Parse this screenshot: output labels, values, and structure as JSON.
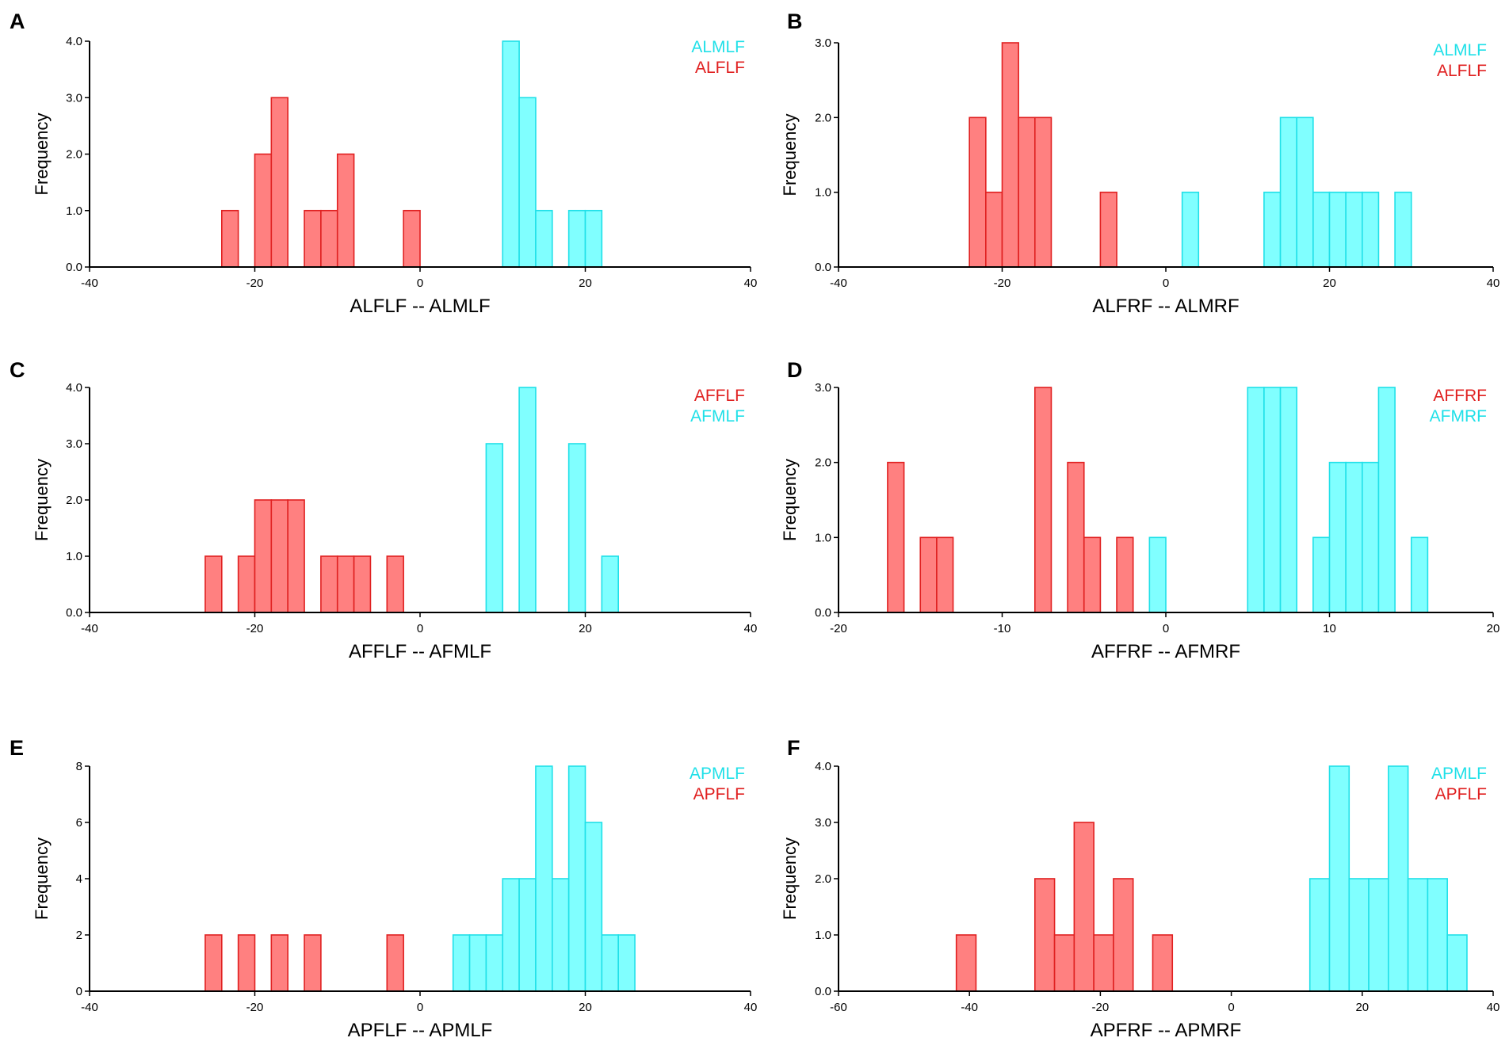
{
  "colors": {
    "red_fill": "#ff8080",
    "red_stroke": "#e02020",
    "red_text": "#e02020",
    "cyan_fill": "#80ffff",
    "cyan_stroke": "#20e0e8",
    "cyan_text": "#20e0e8"
  },
  "chart_data": [
    {
      "panel": "A",
      "type": "bar",
      "title": "",
      "xlabel": "ALFLF -- ALMLF",
      "ylabel": "Frequency",
      "xlim": [
        -40,
        40
      ],
      "ylim": [
        0,
        4
      ],
      "xticks": [
        -40,
        -20,
        0,
        20,
        40
      ],
      "yticks": [
        0,
        1,
        2,
        3,
        4
      ],
      "yticklabels": [
        "0.0",
        "1.0",
        "2.0",
        "3.0",
        "4.0"
      ],
      "legend": [
        {
          "label": "ALMLF",
          "color": "cyan"
        },
        {
          "label": "ALFLF",
          "color": "red"
        }
      ],
      "series": [
        {
          "name": "ALFLF",
          "color": "red",
          "bin_width": 2,
          "bins": [
            [
              -24,
              1
            ],
            [
              -20,
              2
            ],
            [
              -18,
              3
            ],
            [
              -14,
              1
            ],
            [
              -12,
              1
            ],
            [
              -10,
              2
            ],
            [
              -2,
              1
            ]
          ]
        },
        {
          "name": "ALMLF",
          "color": "cyan",
          "bin_width": 2,
          "bins": [
            [
              10,
              4
            ],
            [
              12,
              3
            ],
            [
              14,
              1
            ],
            [
              18,
              1
            ],
            [
              20,
              1
            ]
          ]
        }
      ]
    },
    {
      "panel": "B",
      "type": "bar",
      "title": "",
      "xlabel": "ALFRF -- ALMRF",
      "ylabel": "Frequency",
      "xlim": [
        -40,
        40
      ],
      "ylim": [
        0,
        3
      ],
      "xticks": [
        -40,
        -20,
        0,
        20,
        40
      ],
      "yticks": [
        0,
        1,
        2,
        3
      ],
      "yticklabels": [
        "0.0",
        "1.0",
        "2.0",
        "3.0"
      ],
      "legend": [
        {
          "label": "ALMLF",
          "color": "cyan"
        },
        {
          "label": "ALFLF",
          "color": "red"
        }
      ],
      "series": [
        {
          "name": "ALFLF",
          "color": "red",
          "bin_width": 2,
          "bins": [
            [
              -24,
              2
            ],
            [
              -22,
              1
            ],
            [
              -20,
              3
            ],
            [
              -18,
              2
            ],
            [
              -16,
              2
            ],
            [
              -8,
              1
            ]
          ]
        },
        {
          "name": "ALMLF",
          "color": "cyan",
          "bin_width": 2,
          "bins": [
            [
              2,
              1
            ],
            [
              12,
              1
            ],
            [
              14,
              2
            ],
            [
              16,
              2
            ],
            [
              18,
              1
            ],
            [
              20,
              1
            ],
            [
              22,
              1
            ],
            [
              24,
              1
            ],
            [
              28,
              1
            ]
          ]
        }
      ]
    },
    {
      "panel": "C",
      "type": "bar",
      "title": "",
      "xlabel": "AFFLF -- AFMLF",
      "ylabel": "Frequency",
      "xlim": [
        -40,
        40
      ],
      "ylim": [
        0,
        4
      ],
      "xticks": [
        -40,
        -20,
        0,
        20,
        40
      ],
      "yticks": [
        0,
        1,
        2,
        3,
        4
      ],
      "yticklabels": [
        "0.0",
        "1.0",
        "2.0",
        "3.0",
        "4.0"
      ],
      "legend": [
        {
          "label": "AFFLF",
          "color": "red"
        },
        {
          "label": "AFMLF",
          "color": "cyan"
        }
      ],
      "series": [
        {
          "name": "AFFLF",
          "color": "red",
          "bin_width": 2,
          "bins": [
            [
              -26,
              1
            ],
            [
              -22,
              1
            ],
            [
              -20,
              2
            ],
            [
              -18,
              2
            ],
            [
              -16,
              2
            ],
            [
              -12,
              1
            ],
            [
              -10,
              1
            ],
            [
              -8,
              1
            ],
            [
              -4,
              1
            ]
          ]
        },
        {
          "name": "AFMLF",
          "color": "cyan",
          "bin_width": 2,
          "bins": [
            [
              8,
              3
            ],
            [
              12,
              4
            ],
            [
              18,
              3
            ],
            [
              22,
              1
            ]
          ]
        }
      ]
    },
    {
      "panel": "D",
      "type": "bar",
      "title": "",
      "xlabel": "AFFRF -- AFMRF",
      "ylabel": "Frequency",
      "xlim": [
        -20,
        20
      ],
      "ylim": [
        0,
        3
      ],
      "xticks": [
        -20,
        -10,
        0,
        10,
        20
      ],
      "yticks": [
        0,
        1,
        2,
        3
      ],
      "yticklabels": [
        "0.0",
        "1.0",
        "2.0",
        "3.0"
      ],
      "legend": [
        {
          "label": "AFFRF",
          "color": "red"
        },
        {
          "label": "AFMRF",
          "color": "cyan"
        }
      ],
      "series": [
        {
          "name": "AFFRF",
          "color": "red",
          "bin_width": 1,
          "bins": [
            [
              -17,
              2
            ],
            [
              -15,
              1
            ],
            [
              -14,
              1
            ],
            [
              -8,
              3
            ],
            [
              -6,
              2
            ],
            [
              -5,
              1
            ],
            [
              -3,
              1
            ]
          ]
        },
        {
          "name": "AFMRF",
          "color": "cyan",
          "bin_width": 1,
          "bins": [
            [
              -1,
              1
            ],
            [
              5,
              3
            ],
            [
              6,
              3
            ],
            [
              7,
              3
            ],
            [
              9,
              1
            ],
            [
              10,
              2
            ],
            [
              11,
              2
            ],
            [
              12,
              2
            ],
            [
              13,
              3
            ],
            [
              15,
              1
            ]
          ]
        }
      ]
    },
    {
      "panel": "E",
      "type": "bar",
      "title": "",
      "xlabel": "APFLF -- APMLF",
      "ylabel": "Frequency",
      "xlim": [
        -40,
        40
      ],
      "ylim": [
        0,
        8
      ],
      "xticks": [
        -40,
        -20,
        0,
        20,
        40
      ],
      "yticks": [
        0,
        2,
        4,
        6,
        8
      ],
      "yticklabels": [
        "0",
        "2",
        "4",
        "6",
        "8"
      ],
      "legend": [
        {
          "label": "APMLF",
          "color": "cyan"
        },
        {
          "label": "APFLF",
          "color": "red"
        }
      ],
      "series": [
        {
          "name": "APFLF",
          "color": "red",
          "bin_width": 2,
          "bins": [
            [
              -26,
              2
            ],
            [
              -22,
              2
            ],
            [
              -18,
              2
            ],
            [
              -14,
              2
            ],
            [
              -4,
              2
            ]
          ]
        },
        {
          "name": "APMLF",
          "color": "cyan",
          "bin_width": 2,
          "bins": [
            [
              4,
              2
            ],
            [
              6,
              2
            ],
            [
              8,
              2
            ],
            [
              10,
              4
            ],
            [
              12,
              4
            ],
            [
              14,
              8
            ],
            [
              16,
              4
            ],
            [
              18,
              8
            ],
            [
              20,
              6
            ],
            [
              22,
              2
            ],
            [
              24,
              2
            ]
          ]
        }
      ]
    },
    {
      "panel": "F",
      "type": "bar",
      "title": "",
      "xlabel": "APFRF -- APMRF",
      "ylabel": "Frequency",
      "xlim": [
        -60,
        40
      ],
      "ylim": [
        0,
        4
      ],
      "xticks": [
        -60,
        -40,
        -20,
        0,
        20,
        40
      ],
      "yticks": [
        0,
        1,
        2,
        3,
        4
      ],
      "yticklabels": [
        "0.0",
        "1.0",
        "2.0",
        "3.0",
        "4.0"
      ],
      "legend": [
        {
          "label": "APMLF",
          "color": "cyan"
        },
        {
          "label": "APFLF",
          "color": "red"
        }
      ],
      "series": [
        {
          "name": "APFLF",
          "color": "red",
          "bin_width": 3,
          "bins": [
            [
              -42,
              1
            ],
            [
              -30,
              2
            ],
            [
              -27,
              1
            ],
            [
              -24,
              3
            ],
            [
              -21,
              1
            ],
            [
              -18,
              2
            ],
            [
              -12,
              1
            ]
          ]
        },
        {
          "name": "APMLF",
          "color": "cyan",
          "bin_width": 3,
          "bins": [
            [
              12,
              2
            ],
            [
              15,
              4
            ],
            [
              18,
              2
            ],
            [
              21,
              2
            ],
            [
              24,
              4
            ],
            [
              27,
              2
            ],
            [
              30,
              2
            ],
            [
              33,
              1
            ]
          ]
        }
      ]
    }
  ]
}
